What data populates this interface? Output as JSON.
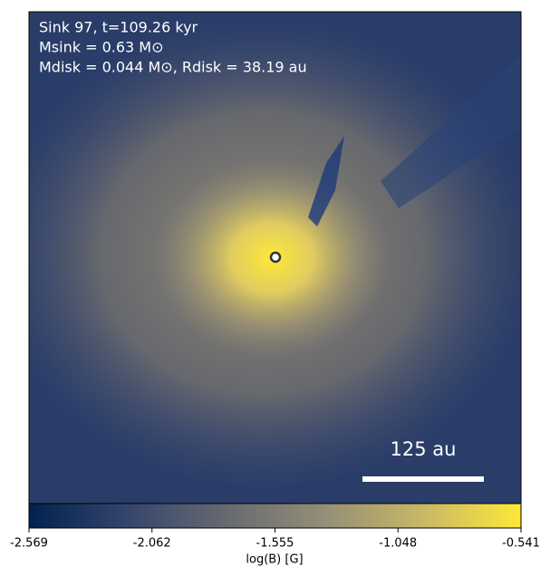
{
  "chart_data": {
    "type": "map",
    "annotations": [
      "Sink 97, t=109.26 kyr",
      "Msink = 0.63 M⊙",
      "Mdisk = 0.044 M⊙, Rdisk = 38.19 au"
    ],
    "scale_bar_label": "125 au",
    "colorbar_label": "log(B) [G]",
    "clim": [
      -2.569,
      -0.541
    ],
    "cticks": [
      -2.569,
      -2.062,
      -1.555,
      -1.048,
      -0.541
    ],
    "colormap": [
      "#00224e",
      "#35456c",
      "#666970",
      "#948e77",
      "#c8b866",
      "#fee838"
    ]
  }
}
